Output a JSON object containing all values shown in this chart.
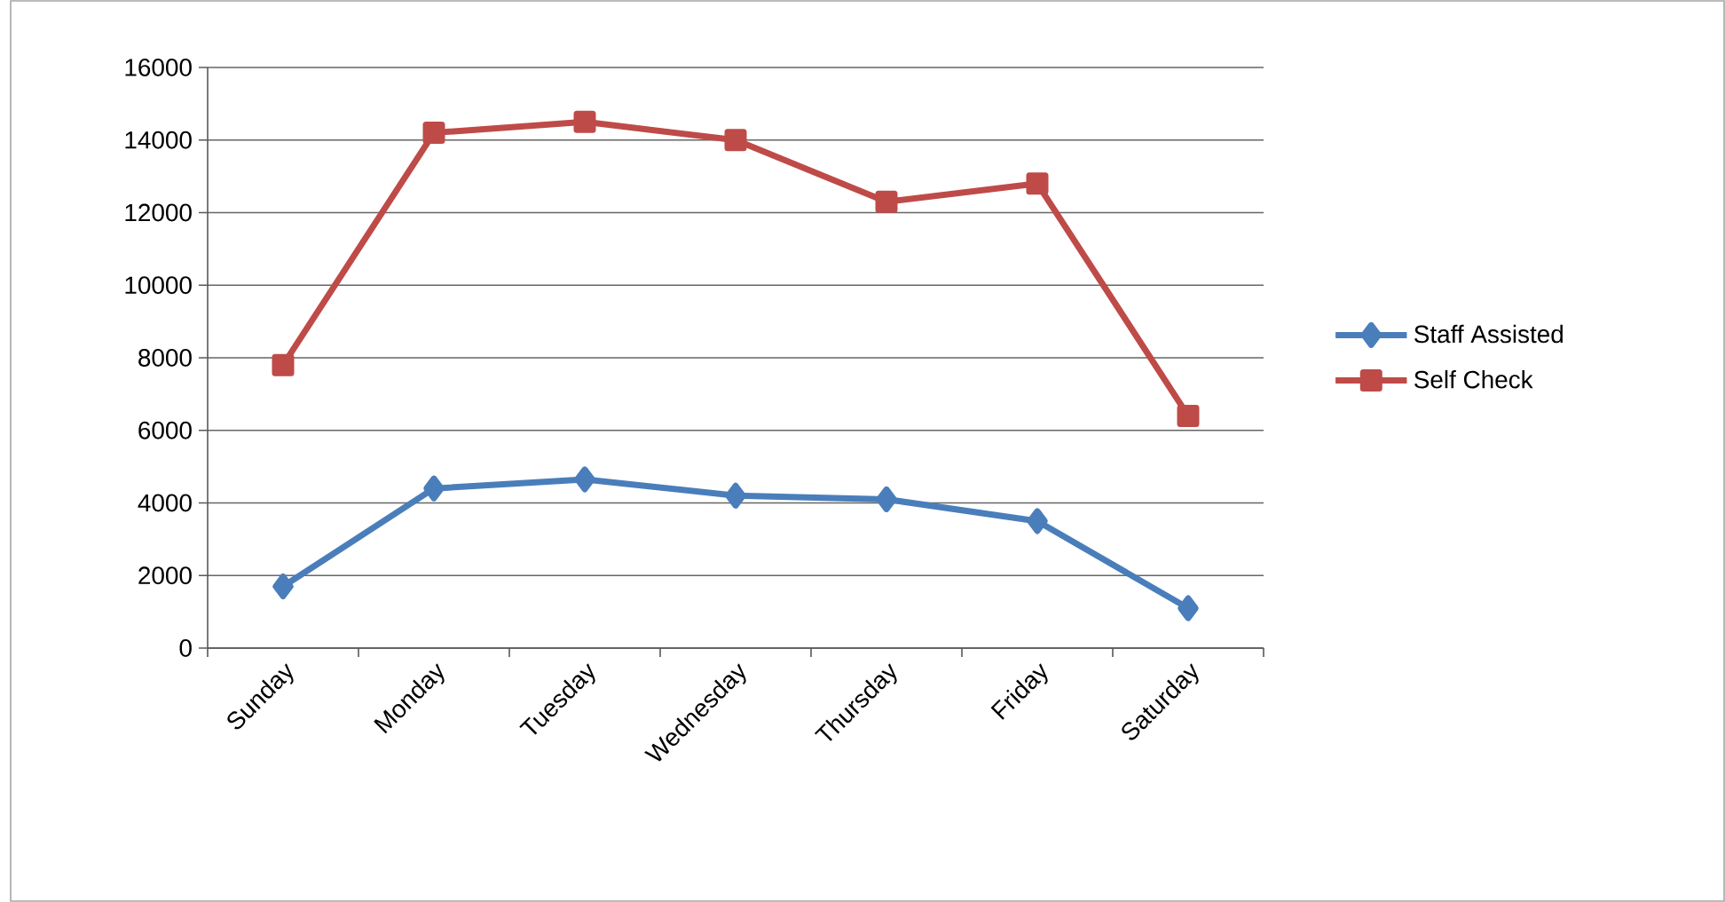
{
  "chart_data": {
    "type": "line",
    "categories": [
      "Sunday",
      "Monday",
      "Tuesday",
      "Wednesday",
      "Thursday",
      "Friday",
      "Saturday"
    ],
    "series": [
      {
        "name": "Staff Assisted",
        "color": "#4a7ebb",
        "marker": "diamond",
        "values": [
          1700,
          4400,
          4650,
          4200,
          4100,
          3500,
          1100
        ]
      },
      {
        "name": "Self Check",
        "color": "#be4b48",
        "marker": "square",
        "values": [
          7800,
          14200,
          14500,
          14000,
          12300,
          12800,
          6400
        ]
      }
    ],
    "ylim": [
      0,
      16000
    ],
    "yticks": [
      0,
      2000,
      4000,
      6000,
      8000,
      10000,
      12000,
      14000,
      16000
    ],
    "grid": "y",
    "legend": "right",
    "line_style": "solid"
  }
}
